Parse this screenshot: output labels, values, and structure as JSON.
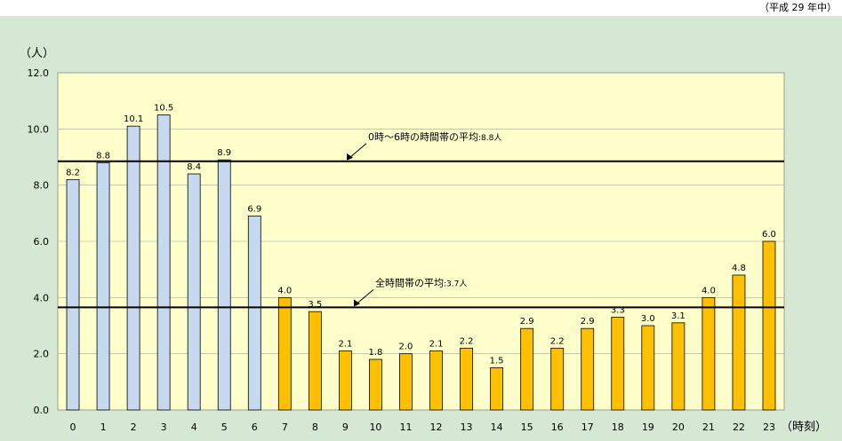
{
  "note": "（平成 29 年中）",
  "colors": {
    "panel": "#d5e8d4",
    "plot": "#ffffcc",
    "night_bar": "#c6d9f0",
    "day_bar": "#ffc000",
    "line": "#000000"
  },
  "chart_data": {
    "type": "bar",
    "ylabel": "（人）",
    "xlabel": "（時刻）",
    "ylim": [
      0,
      12
    ],
    "yticks": [
      "0.0",
      "2.0",
      "4.0",
      "6.0",
      "8.0",
      "10.0",
      "12.0"
    ],
    "grid": true,
    "categories": [
      "0",
      "1",
      "2",
      "3",
      "4",
      "5",
      "6",
      "7",
      "8",
      "9",
      "10",
      "11",
      "12",
      "13",
      "14",
      "15",
      "16",
      "17",
      "18",
      "19",
      "20",
      "21",
      "22",
      "23"
    ],
    "values": [
      8.2,
      8.8,
      10.1,
      10.5,
      8.4,
      8.9,
      6.9,
      4.0,
      3.5,
      2.1,
      1.8,
      2.0,
      2.1,
      2.2,
      1.5,
      2.9,
      2.2,
      2.9,
      3.3,
      3.0,
      3.1,
      4.0,
      4.8,
      6.0
    ],
    "labels": [
      "8.2",
      "8.8",
      "10.1",
      "10.5",
      "8.4",
      "8.9",
      "6.9",
      "4.0",
      "3.5",
      "2.1",
      "1.8",
      "2.0",
      "2.1",
      "2.2",
      "1.5",
      "2.9",
      "2.2",
      "2.9",
      "3.3",
      "3.0",
      "3.1",
      "4.0",
      "4.8",
      "6.0"
    ],
    "night_hours_count": 7,
    "reference_lines": [
      {
        "value": 8.85,
        "label": "0時～6時の時間帯の平均",
        "value_label": ":8.8人"
      },
      {
        "value": 3.65,
        "label": "全時間帯の平均",
        "value_label": ":3.7人"
      }
    ]
  }
}
